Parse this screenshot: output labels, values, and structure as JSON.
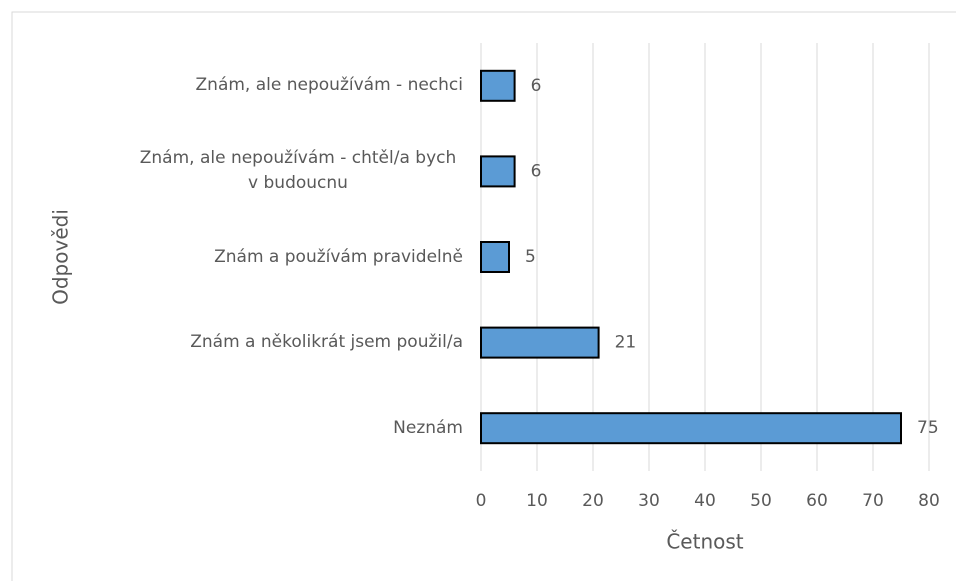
{
  "chart_data": {
    "type": "barh",
    "categories": [
      "Znám, ale nepoužívám - nechci",
      "Znám, ale nepoužívám - chtěl/a bych v budoucnu",
      "Znám a používám pravidelně",
      "Znám a několikrát jsem použil/a",
      "Neznám"
    ],
    "values": [
      6,
      6,
      5,
      21,
      75
    ],
    "color": "#5b9bd5",
    "xlim": [
      0,
      80
    ],
    "xticks": [
      0,
      10,
      20,
      30,
      40,
      50,
      60,
      70,
      80
    ],
    "x_label": "Četnost",
    "y_label": "Odpovědi",
    "grid": true
  }
}
